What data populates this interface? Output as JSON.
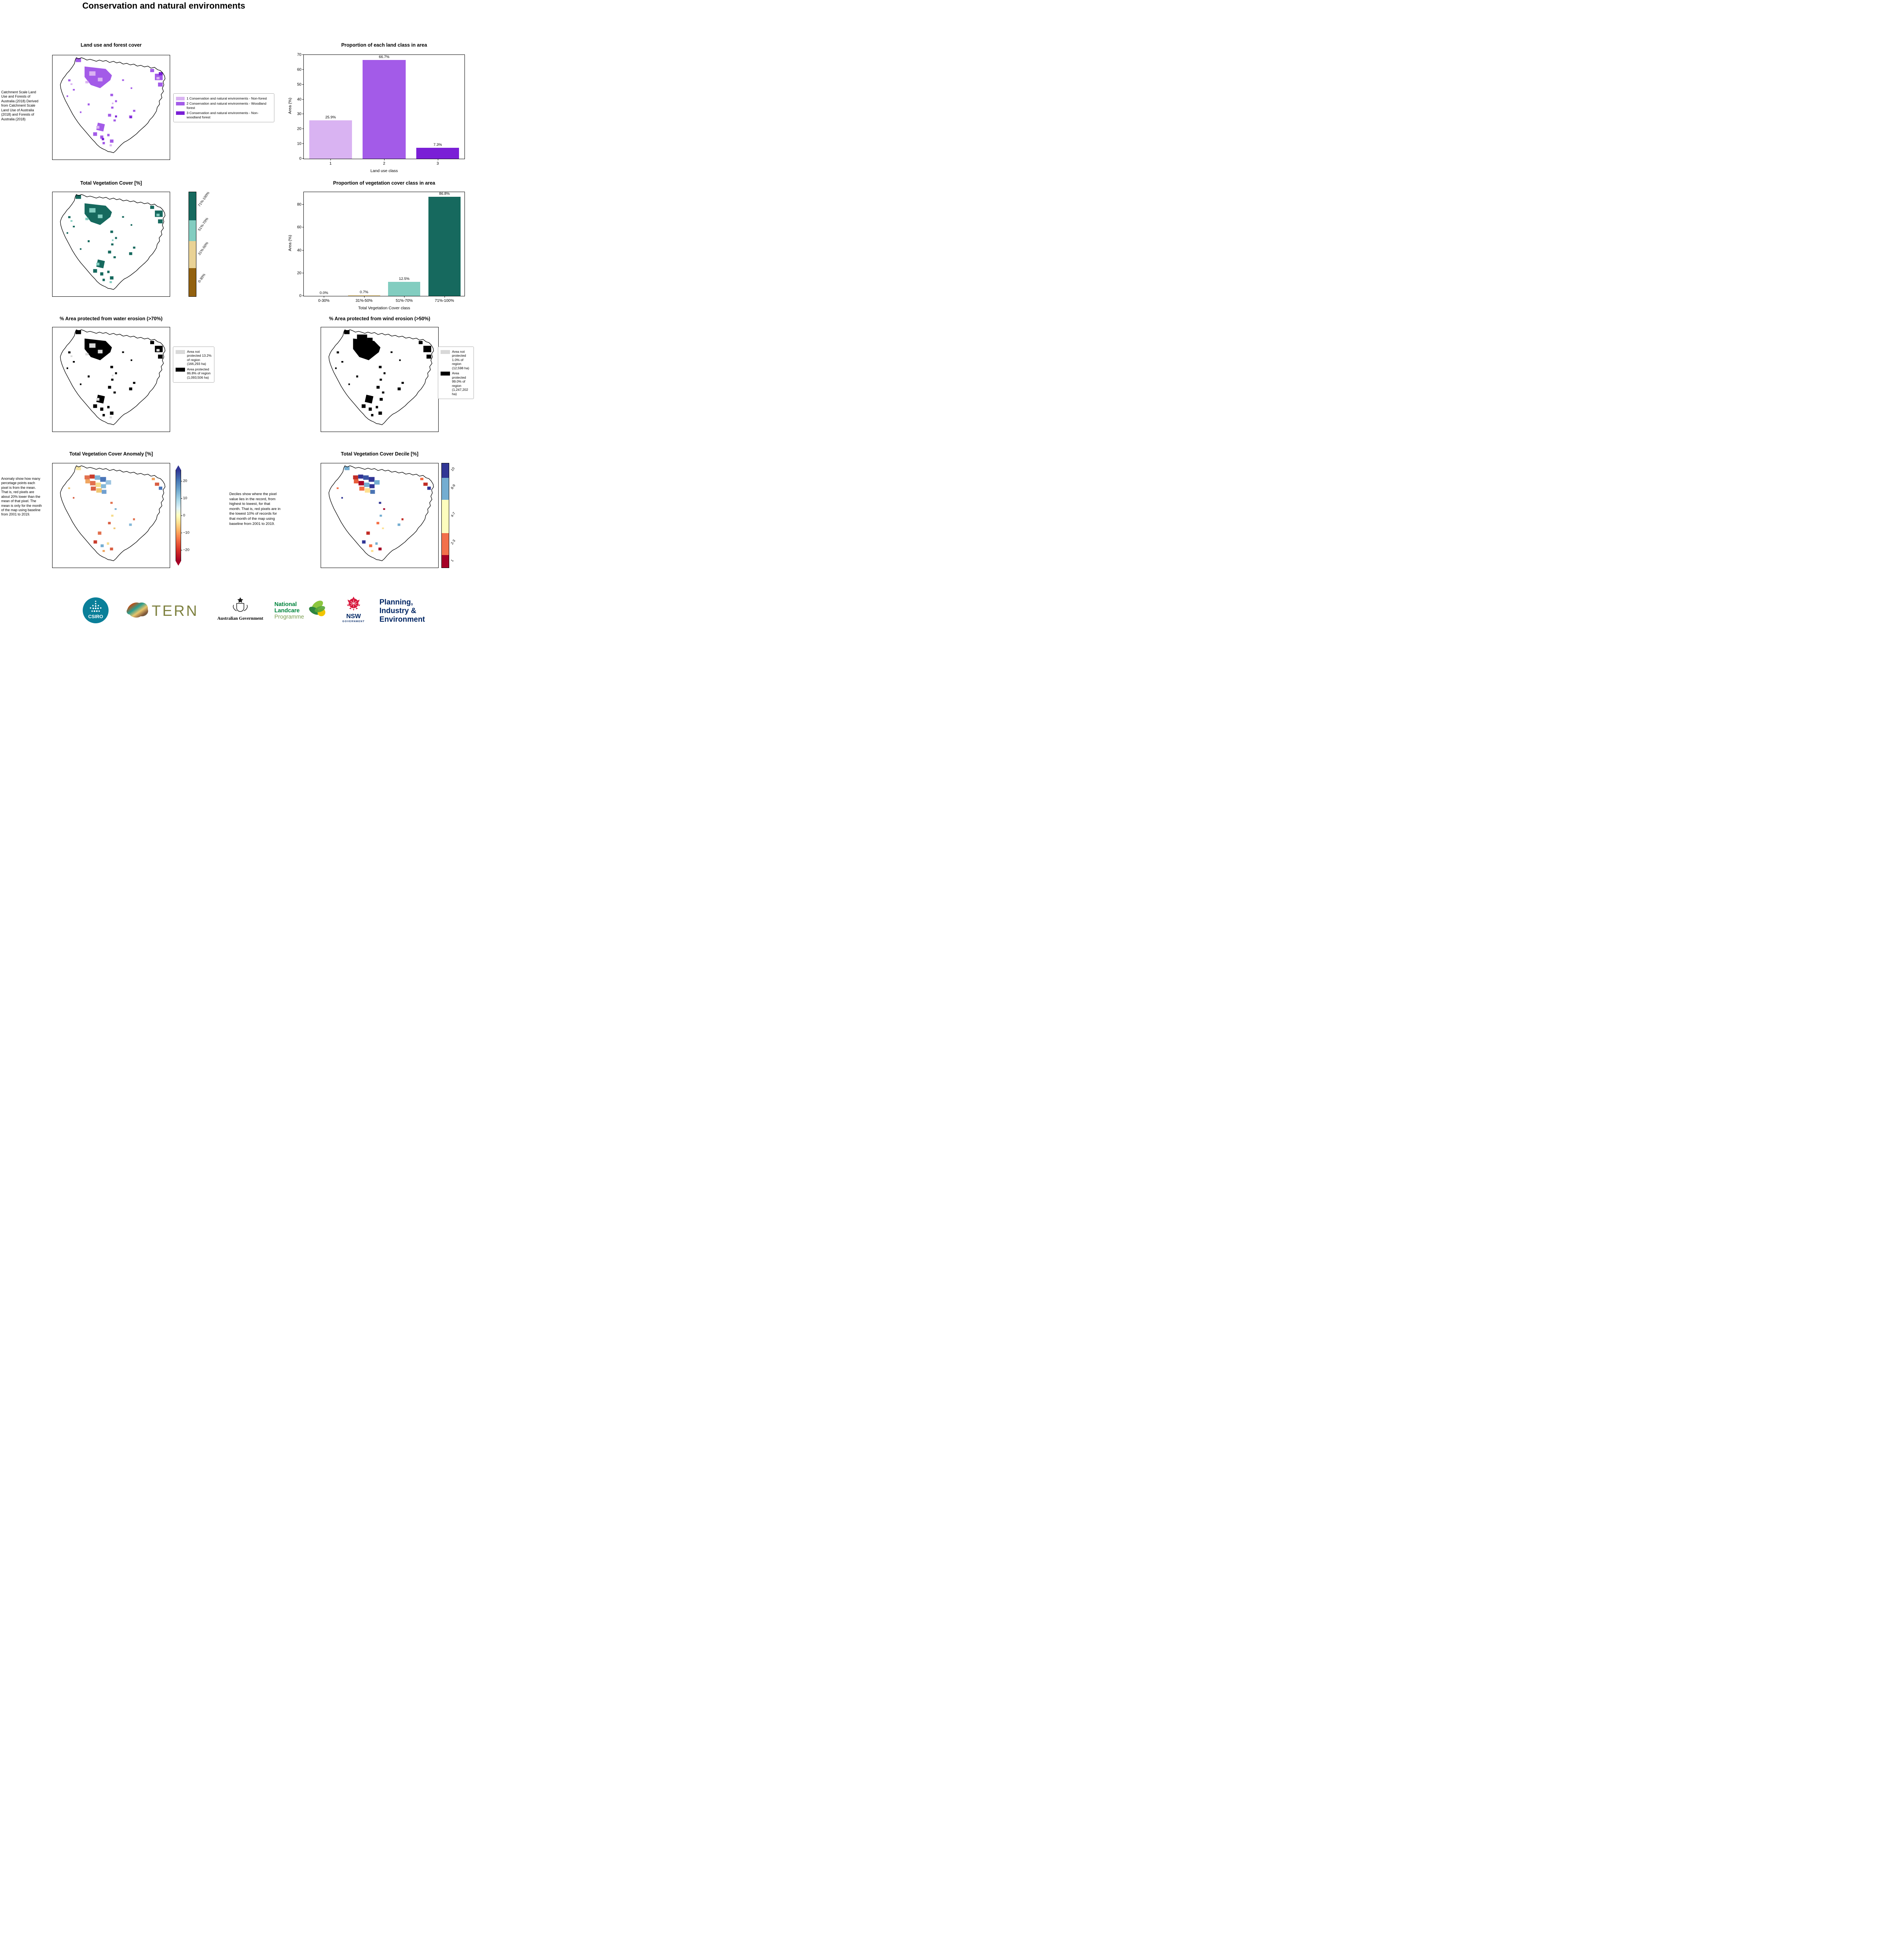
{
  "page": {
    "title": "Conservation and natural environments"
  },
  "panels": {
    "land_use_map": {
      "title": "Land use and forest cover",
      "side_note": "Catchment Scale Land Use and Forests of Australia (2018) Derived from Catchment Scale Land Use of Australia (2018) and Forests of Australia (2018)",
      "legend": [
        {
          "label": "1 Conservation and natural environments - Non-forest",
          "color": "#d9b3f2"
        },
        {
          "label": "2 Conservation and natural environments - Woodland forest",
          "color": "#a35be8"
        },
        {
          "label": "3 Conservation and natural environments - Non-woodland forest",
          "color": "#7a1fd6"
        }
      ]
    },
    "veg_cover_map": {
      "title": "Total Vegetation Cover [%]",
      "colorbar": [
        {
          "label": "71%-100%",
          "color": "#16695e"
        },
        {
          "label": "51%-70%",
          "color": "#82cdc0"
        },
        {
          "label": "31%-50%",
          "color": "#e9d295"
        },
        {
          "label": "0-30%",
          "color": "#92610f"
        }
      ]
    },
    "water_erosion_map": {
      "title": "% Area protected from water erosion (>70%)",
      "legend": [
        {
          "label": "Area not protected 13.2% of region (166,293 ha)",
          "color": "#d9d9d9"
        },
        {
          "label": "Area protected 86.8% of region (1,093,506 ha)",
          "color": "#000000"
        }
      ]
    },
    "wind_erosion_map": {
      "title": "% Area protected from wind erosion (>50%)",
      "legend": [
        {
          "label": "Area not protected 1.0% of region (12,598 ha)",
          "color": "#d9d9d9"
        },
        {
          "label": "Area protected 99.0% of region (1,247,202 ha)",
          "color": "#000000"
        }
      ]
    },
    "anomaly_map": {
      "title": "Total Vegetation Cover Anomaly [%]",
      "side_note": "Anomaly show how many percetage points each pixel is from the mean. That is, red pixels are about 20% lower than the mean of that pixel. The mean is only for the month of the map using baseline from 2001 to 2019.",
      "colorbar_ticks": [
        "20",
        "10",
        "0",
        "−10",
        "−20"
      ],
      "colorbar_colors": {
        "high": "#313695",
        "mid": "#ffffbf",
        "low": "#a50026"
      }
    },
    "decile_map": {
      "title": "Total Vegetation Cover Decile [%]",
      "note": "Deciles show where the pixel value lies in the record, from highest to lowest, for that month. That is, red pixels are in the lowest 10% of records for that month of the map using baseline from 2001 to 2019.",
      "colorbar": [
        {
          "label": "10",
          "color": "#313695"
        },
        {
          "label": "8-9",
          "color": "#74add1"
        },
        {
          "label": "4-7",
          "color": "#fdfdbe"
        },
        {
          "label": "2-3",
          "color": "#f2704b"
        },
        {
          "label": "1",
          "color": "#a50026"
        }
      ]
    }
  },
  "chart_data": [
    {
      "type": "bar",
      "title": "Proportion of each land class in area",
      "xlabel": "Land use class",
      "ylabel": "Area (%)",
      "categories": [
        "1",
        "2",
        "3"
      ],
      "values": [
        25.9,
        66.7,
        7.3
      ],
      "value_labels": [
        "25.9%",
        "66.7%",
        "7.3%"
      ],
      "bar_colors": [
        "#d9b3f2",
        "#a35be8",
        "#7a1fd6"
      ],
      "ylim": [
        0,
        70
      ],
      "yticks": [
        0,
        10,
        20,
        30,
        40,
        50,
        60,
        70
      ],
      "grid": false,
      "legend_position": "none"
    },
    {
      "type": "bar",
      "title": "Proportion of vegetation cover class in area",
      "xlabel": "Total Vegetation Cover class",
      "ylabel": "Area (%)",
      "categories": [
        "0-30%",
        "31%-50%",
        "51%-70%",
        "71%-100%"
      ],
      "values": [
        0.0,
        0.7,
        12.5,
        86.8
      ],
      "value_labels": [
        "0.0%",
        "0.7%",
        "12.5%",
        "86.8%"
      ],
      "bar_colors": [
        "#92610f",
        "#e9d295",
        "#82cdc0",
        "#16695e"
      ],
      "ylim": [
        0,
        91
      ],
      "yticks": [
        0,
        20,
        40,
        60,
        80
      ],
      "grid": false,
      "legend_position": "none"
    }
  ],
  "footer": {
    "csiro": "CSIRO",
    "tern": "TERN",
    "aus_gov": "Australian Government",
    "nlp_line1": "National",
    "nlp_line2": "Landcare",
    "nlp_line3": "Programme",
    "nsw": "NSW",
    "nsw_sub": "GOVERNMENT",
    "pie_line1": "Planning,",
    "pie_line2": "Industry &",
    "pie_line3": "Environment",
    "colors": {
      "csiro_teal": "#0a7f99",
      "tern_olive": "#7e8140",
      "landcare_green": "#00843d",
      "landcare_gray": "#7c9e53",
      "nsw_red": "#d7153a",
      "navy": "#002664"
    }
  }
}
